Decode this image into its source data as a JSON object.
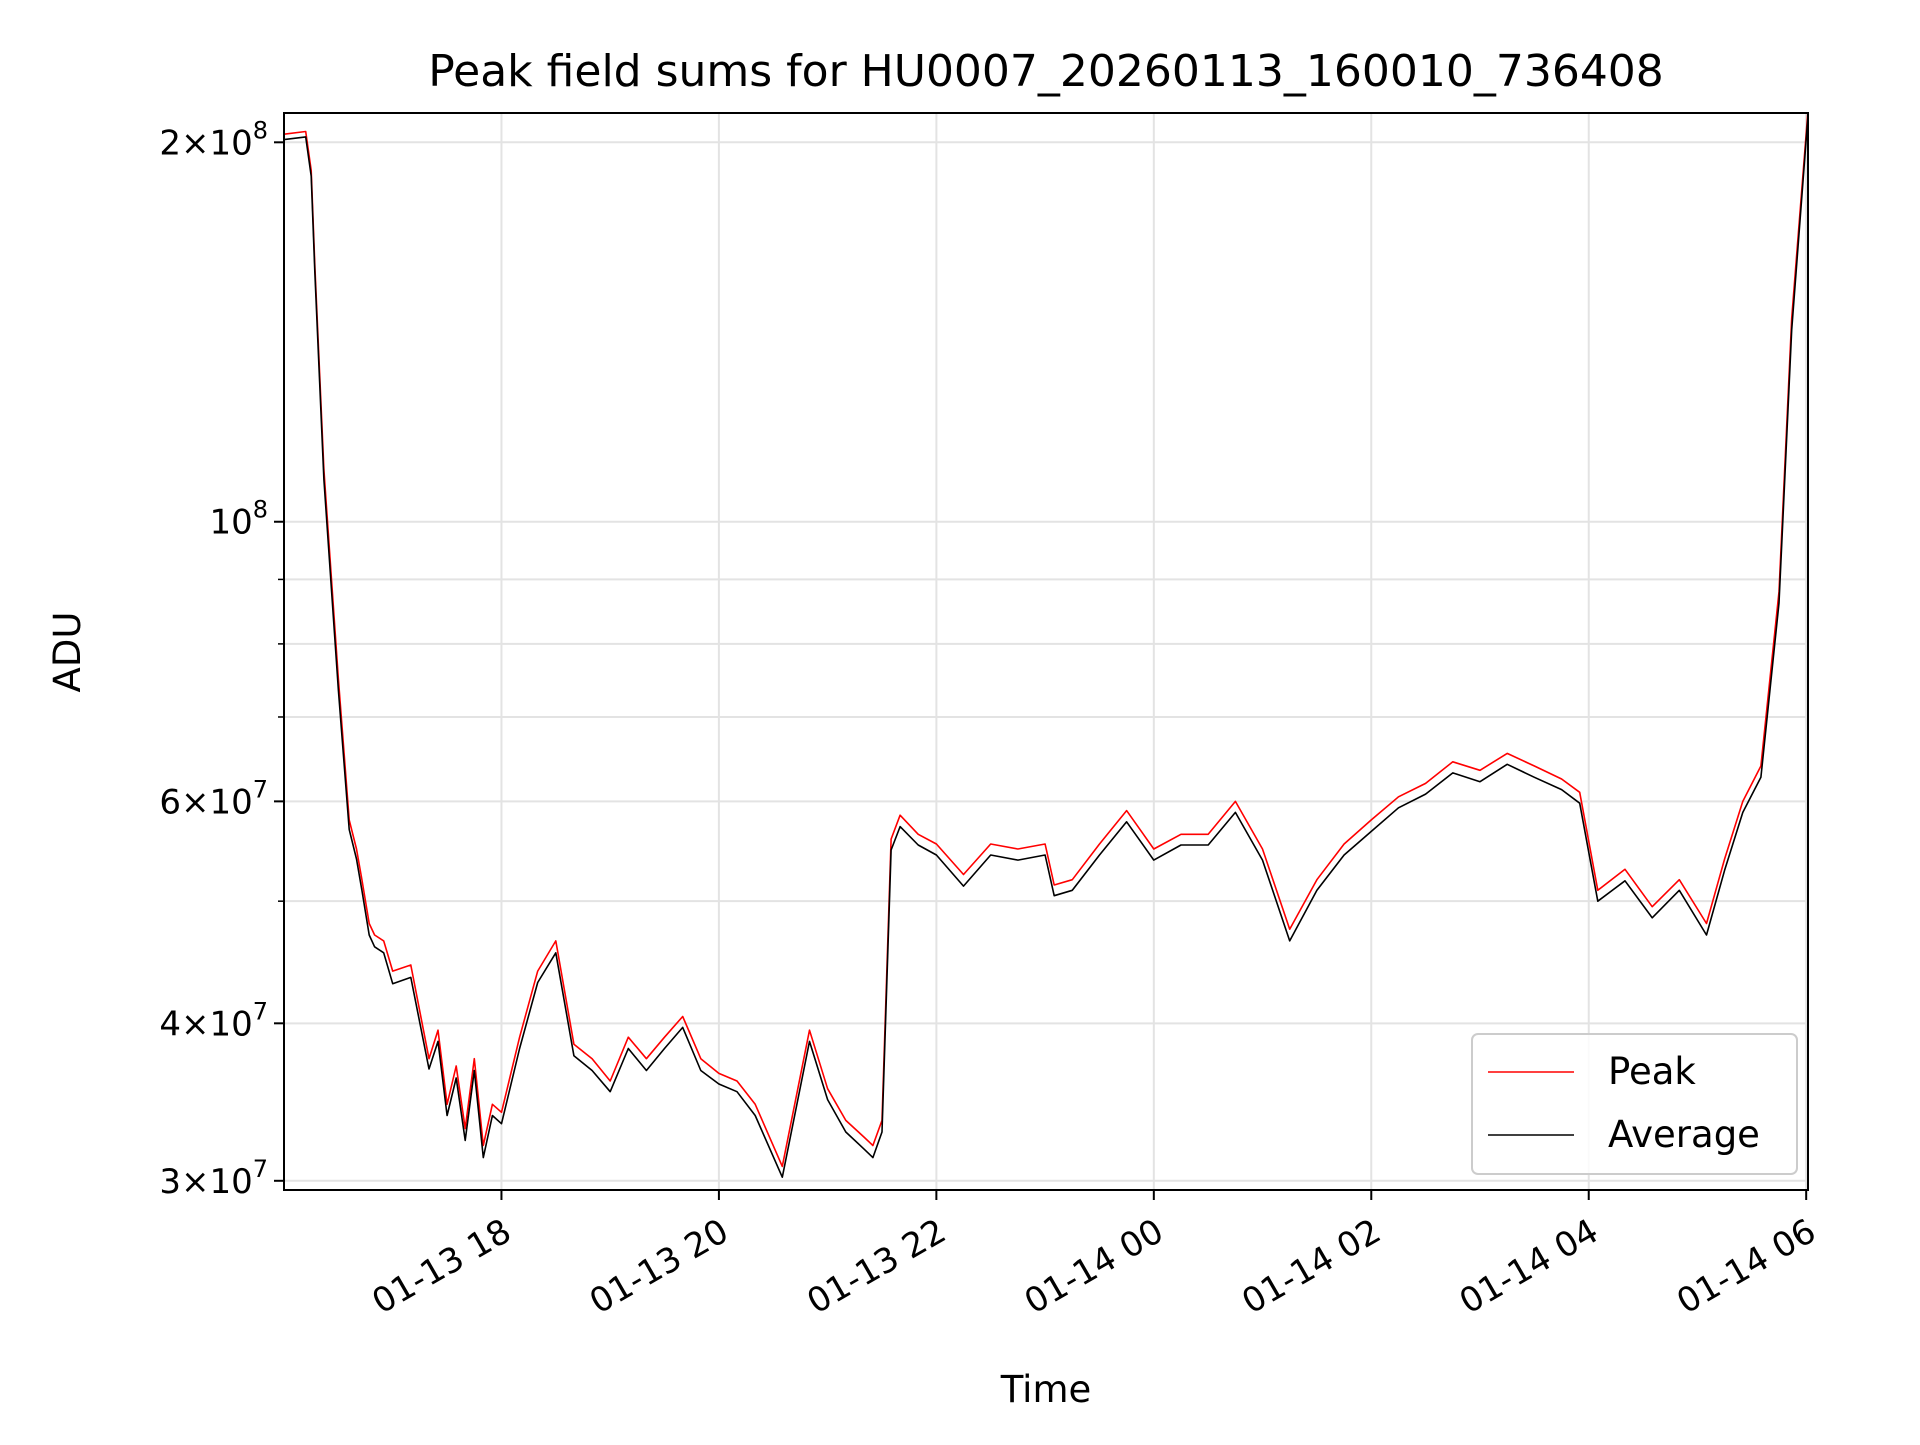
{
  "chart_data": {
    "type": "line",
    "title": "Peak field sums for HU0007_20260113_160010_736408",
    "xlabel": "Time",
    "ylabel": "ADU",
    "y_scale": "log",
    "ylim": [
      29500000,
      211000000
    ],
    "xlim": [
      "2026-01-13 16:00",
      "2026-01-14 06:01"
    ],
    "grid": true,
    "legend_position": "lower right",
    "x_ticks": [
      {
        "value": "2026-01-13 18:00",
        "label": "01-13 18"
      },
      {
        "value": "2026-01-13 20:00",
        "label": "01-13 20"
      },
      {
        "value": "2026-01-13 22:00",
        "label": "01-13 22"
      },
      {
        "value": "2026-01-14 00:00",
        "label": "01-14 00"
      },
      {
        "value": "2026-01-14 02:00",
        "label": "01-14 02"
      },
      {
        "value": "2026-01-14 04:00",
        "label": "01-14 04"
      },
      {
        "value": "2026-01-14 06:00",
        "label": "01-14 06"
      }
    ],
    "y_ticks": [
      {
        "value": 30000000,
        "mantissa": "3",
        "exponent": "7"
      },
      {
        "value": 40000000,
        "mantissa": "4",
        "exponent": "7"
      },
      {
        "value": 60000000,
        "mantissa": "6",
        "exponent": "7"
      },
      {
        "value": 100000000,
        "mantissa": "",
        "exponent": "8"
      },
      {
        "value": 200000000,
        "mantissa": "2",
        "exponent": "8"
      }
    ],
    "y_minor_ticks": [
      50000000,
      70000000,
      80000000,
      90000000
    ],
    "series": [
      {
        "name": "Peak",
        "color": "#ff0000",
        "x": [
          "2026-01-13 16:00",
          "2026-01-13 16:12",
          "2026-01-13 16:15",
          "2026-01-13 16:17",
          "2026-01-13 16:22",
          "2026-01-13 16:30",
          "2026-01-13 16:36",
          "2026-01-13 16:40",
          "2026-01-13 16:43",
          "2026-01-13 16:47",
          "2026-01-13 16:50",
          "2026-01-13 16:55",
          "2026-01-13 17:00",
          "2026-01-13 17:10",
          "2026-01-13 17:20",
          "2026-01-13 17:25",
          "2026-01-13 17:30",
          "2026-01-13 17:35",
          "2026-01-13 17:40",
          "2026-01-13 17:45",
          "2026-01-13 17:50",
          "2026-01-13 17:55",
          "2026-01-13 18:00",
          "2026-01-13 18:10",
          "2026-01-13 18:20",
          "2026-01-13 18:30",
          "2026-01-13 18:40",
          "2026-01-13 18:50",
          "2026-01-13 19:00",
          "2026-01-13 19:10",
          "2026-01-13 19:20",
          "2026-01-13 19:30",
          "2026-01-13 19:40",
          "2026-01-13 19:50",
          "2026-01-13 20:00",
          "2026-01-13 20:10",
          "2026-01-13 20:20",
          "2026-01-13 20:35",
          "2026-01-13 20:50",
          "2026-01-13 21:00",
          "2026-01-13 21:10",
          "2026-01-13 21:20",
          "2026-01-13 21:25",
          "2026-01-13 21:30",
          "2026-01-13 21:35",
          "2026-01-13 21:40",
          "2026-01-13 21:50",
          "2026-01-13 22:00",
          "2026-01-13 22:15",
          "2026-01-13 22:30",
          "2026-01-13 22:45",
          "2026-01-13 23:00",
          "2026-01-13 23:05",
          "2026-01-13 23:15",
          "2026-01-13 23:30",
          "2026-01-13 23:45",
          "2026-01-14 00:00",
          "2026-01-14 00:15",
          "2026-01-14 00:30",
          "2026-01-14 00:45",
          "2026-01-14 01:00",
          "2026-01-14 01:15",
          "2026-01-14 01:30",
          "2026-01-14 01:45",
          "2026-01-14 02:00",
          "2026-01-14 02:15",
          "2026-01-14 02:30",
          "2026-01-14 02:45",
          "2026-01-14 03:00",
          "2026-01-14 03:15",
          "2026-01-14 03:30",
          "2026-01-14 03:45",
          "2026-01-14 03:55",
          "2026-01-14 04:05",
          "2026-01-14 04:20",
          "2026-01-14 04:35",
          "2026-01-14 04:50",
          "2026-01-14 05:05",
          "2026-01-14 05:15",
          "2026-01-14 05:25",
          "2026-01-14 05:35",
          "2026-01-14 05:45",
          "2026-01-14 05:52",
          "2026-01-14 06:01"
        ],
        "values": [
          203000000,
          204000000,
          190000000,
          160000000,
          110000000,
          75000000,
          58000000,
          55000000,
          52000000,
          48000000,
          47000000,
          46500000,
          44000000,
          44500000,
          37500000,
          39500000,
          34500000,
          37000000,
          33000000,
          37500000,
          32000000,
          34500000,
          34000000,
          39000000,
          44000000,
          46500000,
          38500000,
          37500000,
          36000000,
          39000000,
          37500000,
          39000000,
          40500000,
          37500000,
          36500000,
          36000000,
          34500000,
          30800000,
          39500000,
          35500000,
          33500000,
          32500000,
          32000000,
          33500000,
          56000000,
          58500000,
          56500000,
          55500000,
          52500000,
          55500000,
          55000000,
          55500000,
          51500000,
          52000000,
          55500000,
          59000000,
          55000000,
          56500000,
          56500000,
          60000000,
          55000000,
          47500000,
          52000000,
          55500000,
          58000000,
          60500000,
          62000000,
          64500000,
          63500000,
          65500000,
          64000000,
          62500000,
          61000000,
          51000000,
          53000000,
          49500000,
          52000000,
          48000000,
          54000000,
          60000000,
          64000000,
          88000000,
          145000000,
          212000000
        ]
      },
      {
        "name": "Average",
        "color": "#000000",
        "x": [
          "2026-01-13 16:00",
          "2026-01-13 16:12",
          "2026-01-13 16:15",
          "2026-01-13 16:17",
          "2026-01-13 16:22",
          "2026-01-13 16:30",
          "2026-01-13 16:36",
          "2026-01-13 16:40",
          "2026-01-13 16:43",
          "2026-01-13 16:47",
          "2026-01-13 16:50",
          "2026-01-13 16:55",
          "2026-01-13 17:00",
          "2026-01-13 17:10",
          "2026-01-13 17:20",
          "2026-01-13 17:25",
          "2026-01-13 17:30",
          "2026-01-13 17:35",
          "2026-01-13 17:40",
          "2026-01-13 17:45",
          "2026-01-13 17:50",
          "2026-01-13 17:55",
          "2026-01-13 18:00",
          "2026-01-13 18:10",
          "2026-01-13 18:20",
          "2026-01-13 18:30",
          "2026-01-13 18:40",
          "2026-01-13 18:50",
          "2026-01-13 19:00",
          "2026-01-13 19:10",
          "2026-01-13 19:20",
          "2026-01-13 19:30",
          "2026-01-13 19:40",
          "2026-01-13 19:50",
          "2026-01-13 20:00",
          "2026-01-13 20:10",
          "2026-01-13 20:20",
          "2026-01-13 20:35",
          "2026-01-13 20:50",
          "2026-01-13 21:00",
          "2026-01-13 21:10",
          "2026-01-13 21:20",
          "2026-01-13 21:25",
          "2026-01-13 21:30",
          "2026-01-13 21:35",
          "2026-01-13 21:40",
          "2026-01-13 21:50",
          "2026-01-13 22:00",
          "2026-01-13 22:15",
          "2026-01-13 22:30",
          "2026-01-13 22:45",
          "2026-01-13 23:00",
          "2026-01-13 23:05",
          "2026-01-13 23:15",
          "2026-01-13 23:30",
          "2026-01-13 23:45",
          "2026-01-14 00:00",
          "2026-01-14 00:15",
          "2026-01-14 00:30",
          "2026-01-14 00:45",
          "2026-01-14 01:00",
          "2026-01-14 01:15",
          "2026-01-14 01:30",
          "2026-01-14 01:45",
          "2026-01-14 02:00",
          "2026-01-14 02:15",
          "2026-01-14 02:30",
          "2026-01-14 02:45",
          "2026-01-14 03:00",
          "2026-01-14 03:15",
          "2026-01-14 03:30",
          "2026-01-14 03:45",
          "2026-01-14 03:55",
          "2026-01-14 04:05",
          "2026-01-14 04:20",
          "2026-01-14 04:35",
          "2026-01-14 04:50",
          "2026-01-14 05:05",
          "2026-01-14 05:15",
          "2026-01-14 05:25",
          "2026-01-14 05:35",
          "2026-01-14 05:45",
          "2026-01-14 05:52",
          "2026-01-14 06:01"
        ],
        "values": [
          201000000,
          202000000,
          188000000,
          158000000,
          108000000,
          73500000,
          57000000,
          54000000,
          51000000,
          47000000,
          46000000,
          45500000,
          43000000,
          43500000,
          36800000,
          38700000,
          33800000,
          36200000,
          32300000,
          36700000,
          31300000,
          33800000,
          33300000,
          38200000,
          43100000,
          45500000,
          37700000,
          36700000,
          35300000,
          38200000,
          36700000,
          38200000,
          39700000,
          36700000,
          35800000,
          35300000,
          33800000,
          30200000,
          38700000,
          34800000,
          32800000,
          31800000,
          31300000,
          32800000,
          54900000,
          57300000,
          55400000,
          54400000,
          51400000,
          54400000,
          53900000,
          54400000,
          50500000,
          51000000,
          54400000,
          57800000,
          53900000,
          55400000,
          55400000,
          58800000,
          53900000,
          46500000,
          51000000,
          54400000,
          56800000,
          59300000,
          60800000,
          63200000,
          62200000,
          64200000,
          62700000,
          61300000,
          59800000,
          50000000,
          51900000,
          48500000,
          51000000,
          47000000,
          52900000,
          58800000,
          62700000,
          86200000,
          142000000,
          210000000
        ]
      }
    ]
  }
}
